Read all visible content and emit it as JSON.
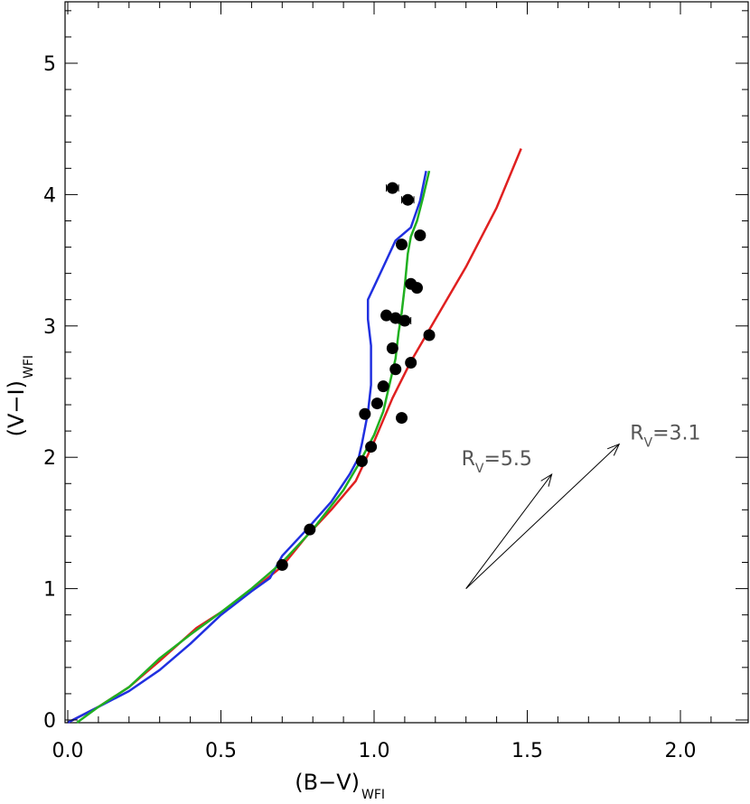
{
  "chart_data": {
    "type": "scatter",
    "xlabel": "(B−V)",
    "xlabel_sub": "WFI",
    "ylabel": "(V−I)",
    "ylabel_sub": "WFI",
    "xlim": [
      0.0,
      2.2
    ],
    "ylim": [
      -0.05,
      5.5
    ],
    "x_ticks": [
      0.0,
      0.5,
      1.0,
      1.5,
      2.0
    ],
    "x_tick_labels": [
      "0.0",
      "0.5",
      "1.0",
      "1.5",
      "2.0"
    ],
    "y_ticks": [
      0,
      1,
      2,
      3,
      4,
      5
    ],
    "y_tick_labels": [
      "0",
      "1",
      "2",
      "3",
      "4",
      "5"
    ],
    "grid": false,
    "points": [
      {
        "x": 1.06,
        "y": 4.05,
        "xerr": 0.02
      },
      {
        "x": 1.11,
        "y": 3.96,
        "xerr": 0.02
      },
      {
        "x": 1.15,
        "y": 3.69
      },
      {
        "x": 1.09,
        "y": 3.62
      },
      {
        "x": 1.12,
        "y": 3.32
      },
      {
        "x": 1.14,
        "y": 3.29
      },
      {
        "x": 1.04,
        "y": 3.08
      },
      {
        "x": 1.07,
        "y": 3.06
      },
      {
        "x": 1.1,
        "y": 3.04,
        "xerr": 0.02
      },
      {
        "x": 1.18,
        "y": 2.93
      },
      {
        "x": 1.06,
        "y": 2.83
      },
      {
        "x": 1.12,
        "y": 2.72
      },
      {
        "x": 1.07,
        "y": 2.67
      },
      {
        "x": 1.03,
        "y": 2.54
      },
      {
        "x": 1.01,
        "y": 2.41
      },
      {
        "x": 0.97,
        "y": 2.33
      },
      {
        "x": 1.09,
        "y": 2.3
      },
      {
        "x": 0.99,
        "y": 2.08
      },
      {
        "x": 0.96,
        "y": 1.97
      },
      {
        "x": 0.79,
        "y": 1.45
      },
      {
        "x": 0.7,
        "y": 1.18
      }
    ],
    "series": [
      {
        "color": "#e02020",
        "x": [
          0.0,
          0.1,
          0.2,
          0.3,
          0.42,
          0.52,
          0.62,
          0.7,
          0.78,
          0.86,
          0.94,
          1.0,
          1.06,
          1.12,
          1.2,
          1.3,
          1.4,
          1.48
        ],
        "y": [
          -0.02,
          0.1,
          0.25,
          0.45,
          0.7,
          0.85,
          1.02,
          1.17,
          1.4,
          1.6,
          1.82,
          2.12,
          2.45,
          2.73,
          3.05,
          3.45,
          3.9,
          4.35
        ]
      },
      {
        "color": "#2030e0",
        "x": [
          0.0,
          0.1,
          0.2,
          0.3,
          0.4,
          0.5,
          0.6,
          0.66,
          0.7,
          0.78,
          0.86,
          0.92,
          0.95,
          0.96,
          0.97,
          0.98,
          0.99,
          0.99,
          0.98,
          0.98,
          0.99,
          1.0,
          1.03,
          1.07,
          1.12,
          1.15,
          1.17
        ],
        "y": [
          -0.02,
          0.1,
          0.22,
          0.38,
          0.58,
          0.8,
          0.98,
          1.08,
          1.25,
          1.45,
          1.66,
          1.87,
          2.0,
          2.1,
          2.22,
          2.34,
          2.55,
          2.85,
          3.05,
          3.2,
          3.25,
          3.3,
          3.45,
          3.65,
          3.75,
          3.95,
          4.18
        ]
      },
      {
        "color": "#20b020",
        "x": [
          0.03,
          0.1,
          0.2,
          0.3,
          0.4,
          0.5,
          0.6,
          0.7,
          0.8,
          0.9,
          0.95,
          1.0,
          1.03,
          1.05,
          1.07,
          1.08,
          1.09,
          1.1,
          1.11,
          1.12,
          1.14,
          1.16,
          1.18
        ],
        "y": [
          -0.02,
          0.1,
          0.25,
          0.47,
          0.65,
          0.82,
          1.0,
          1.2,
          1.45,
          1.75,
          1.95,
          2.17,
          2.35,
          2.55,
          2.75,
          2.95,
          3.1,
          3.3,
          3.55,
          3.68,
          3.8,
          3.98,
          4.18
        ]
      }
    ],
    "reddening_vectors": [
      {
        "label_main": "R",
        "label_sub": "V",
        "label_value": "=5.5",
        "from": [
          1.3,
          1.0
        ],
        "to": [
          1.58,
          1.87
        ]
      },
      {
        "label_main": "R",
        "label_sub": "V",
        "label_value": "=3.1",
        "from": [
          1.3,
          1.0
        ],
        "to": [
          1.8,
          2.1
        ]
      }
    ]
  }
}
